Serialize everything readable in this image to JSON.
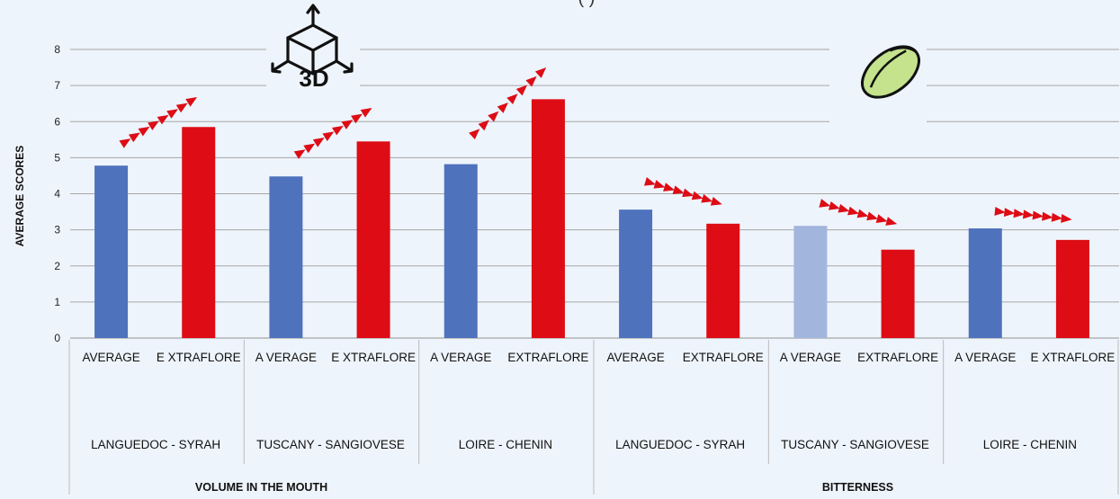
{
  "title_fragment": "(                                            )",
  "chart_data": {
    "type": "bar",
    "ylabel": "AVERAGE SCORES",
    "ylim": [
      0,
      8
    ],
    "yticks": [
      0,
      1,
      2,
      3,
      4,
      5,
      6,
      7,
      8
    ],
    "grid": true,
    "groups": [
      {
        "name": "VOLUME IN THE MOUTH",
        "subgroups": [
          "LANGUEDOC - SYRAH",
          "TUSCANY - SANGIOVESE",
          "LOIRE - CHENIN"
        ]
      },
      {
        "name": "BITTERNESS",
        "subgroups": [
          "LANGUEDOC - SYRAH",
          "TUSCANY - SANGIOVESE",
          "LOIRE - CHENIN"
        ]
      }
    ],
    "bar_labels": [
      "AVERAGE",
      "E  XTRAFLORE",
      "A VERAGE",
      "E XTRAFLORE",
      "A VERAGE",
      "EXTRAFLORE",
      "AVERAGE",
      "EXTRAFLORE",
      "A VERAGE",
      "EXTRAFLORE",
      "A VERAGE",
      "E XTRAFLORE"
    ],
    "values": [
      4.78,
      5.85,
      4.48,
      5.45,
      4.82,
      6.62,
      3.56,
      3.17,
      3.11,
      2.45,
      3.04,
      2.72
    ],
    "bar_colors": [
      "#4f72bd",
      "#dd0c15",
      "#4f72bd",
      "#dd0c15",
      "#4f72bd",
      "#dd0c15",
      "#4f72bd",
      "#dd0c15",
      "#a2b5dd",
      "#dd0c15",
      "#4f72bd",
      "#dd0c15"
    ],
    "trend_arrows": [
      {
        "direction": "up",
        "from": 5.45,
        "to": 6.6
      },
      {
        "direction": "up",
        "from": 5.15,
        "to": 6.3
      },
      {
        "direction": "up",
        "from": 5.7,
        "to": 7.4
      },
      {
        "direction": "down",
        "from": 4.3,
        "to": 3.75
      },
      {
        "direction": "down",
        "from": 3.7,
        "to": 3.2
      },
      {
        "direction": "down",
        "from": 3.5,
        "to": 3.3
      }
    ],
    "icons": [
      "3d-cube-icon",
      "green-olive-icon"
    ],
    "icon_text": "3D"
  },
  "colors": {
    "average": "#4f72bd",
    "extraflore": "#dd0c15",
    "arrow": "#dd0c15",
    "grid": "#a6a6a6",
    "background": "#eef4fb"
  }
}
